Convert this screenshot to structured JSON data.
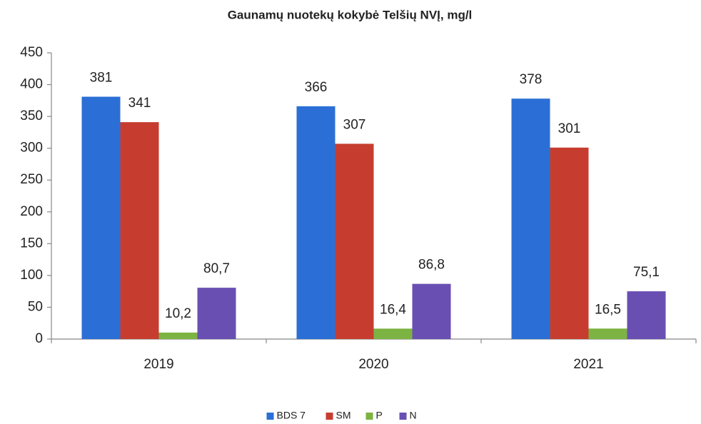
{
  "chart_data": {
    "type": "bar",
    "title": "Gaunamų nuotekų kokybė Telšių NVĮ, mg/l",
    "categories": [
      "2019",
      "2020",
      "2021"
    ],
    "series": [
      {
        "name": "BDS 7",
        "color": "#2b6fd6",
        "values": [
          381,
          366,
          378
        ],
        "value_labels": [
          "381",
          "366",
          "378"
        ]
      },
      {
        "name": "SM",
        "color": "#c63d2f",
        "values": [
          341,
          307,
          301
        ],
        "value_labels": [
          "341",
          "307",
          "301"
        ]
      },
      {
        "name": "P",
        "color": "#7cb342",
        "values": [
          10.2,
          16.4,
          16.5
        ],
        "value_labels": [
          "10,2",
          "16,4",
          "16,5"
        ]
      },
      {
        "name": "N",
        "color": "#6a4fb3",
        "values": [
          80.7,
          86.8,
          75.1
        ],
        "value_labels": [
          "80,7",
          "86,8",
          "75,1"
        ]
      }
    ],
    "ylim": [
      0,
      450
    ],
    "yticks": [
      0,
      50,
      100,
      150,
      200,
      250,
      300,
      350,
      400,
      450
    ],
    "legend": "bottom"
  }
}
